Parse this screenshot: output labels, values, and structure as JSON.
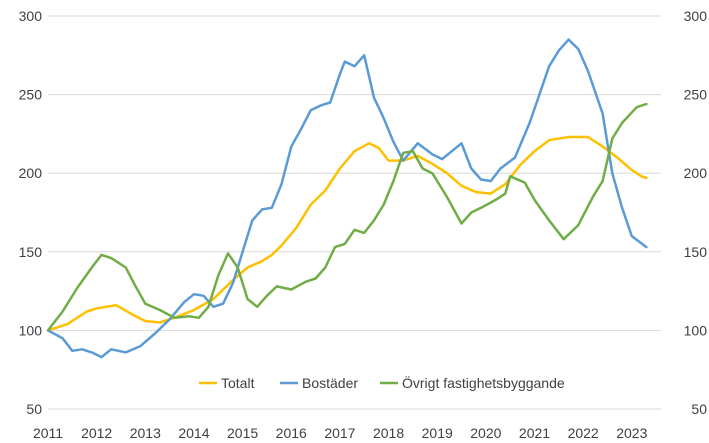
{
  "chart_data": {
    "type": "line",
    "title": "",
    "xlabel": "",
    "ylabel": "",
    "xlim": [
      2011.0,
      2023.6
    ],
    "ylim": [
      50,
      300
    ],
    "y_ticks": [
      50,
      100,
      150,
      200,
      250,
      300
    ],
    "y_ticks_right": [
      50,
      100,
      150,
      200,
      250,
      300
    ],
    "x_ticks": [
      2011,
      2012,
      2013,
      2014,
      2015,
      2016,
      2017,
      2018,
      2019,
      2020,
      2021,
      2022,
      2023
    ],
    "grid": "horizontal",
    "legend_position": "bottom-inside",
    "series": [
      {
        "name": "Totalt",
        "color": "#FFC000",
        "points": [
          [
            2011.0,
            100
          ],
          [
            2011.4,
            104
          ],
          [
            2011.8,
            112
          ],
          [
            2012.0,
            114
          ],
          [
            2012.4,
            116
          ],
          [
            2012.8,
            109
          ],
          [
            2013.0,
            106
          ],
          [
            2013.3,
            105
          ],
          [
            2013.6,
            108
          ],
          [
            2014.0,
            113
          ],
          [
            2014.4,
            120
          ],
          [
            2014.8,
            132
          ],
          [
            2015.1,
            140
          ],
          [
            2015.4,
            144
          ],
          [
            2015.6,
            148
          ],
          [
            2015.8,
            154
          ],
          [
            2016.1,
            165
          ],
          [
            2016.4,
            180
          ],
          [
            2016.7,
            189
          ],
          [
            2017.0,
            203
          ],
          [
            2017.3,
            214
          ],
          [
            2017.6,
            219
          ],
          [
            2017.8,
            216
          ],
          [
            2018.0,
            208
          ],
          [
            2018.3,
            208
          ],
          [
            2018.6,
            211
          ],
          [
            2018.9,
            206
          ],
          [
            2019.2,
            200
          ],
          [
            2019.5,
            192
          ],
          [
            2019.8,
            188
          ],
          [
            2020.1,
            187
          ],
          [
            2020.4,
            193
          ],
          [
            2020.7,
            205
          ],
          [
            2021.0,
            214
          ],
          [
            2021.3,
            221
          ],
          [
            2021.7,
            223
          ],
          [
            2022.1,
            223
          ],
          [
            2022.4,
            217
          ],
          [
            2022.7,
            210
          ],
          [
            2023.0,
            202
          ],
          [
            2023.2,
            198
          ],
          [
            2023.3,
            197
          ]
        ]
      },
      {
        "name": "Bostäder",
        "color": "#5B9BD5",
        "points": [
          [
            2011.0,
            100
          ],
          [
            2011.3,
            95
          ],
          [
            2011.5,
            87
          ],
          [
            2011.7,
            88
          ],
          [
            2011.9,
            86
          ],
          [
            2012.1,
            83
          ],
          [
            2012.3,
            88
          ],
          [
            2012.6,
            86
          ],
          [
            2012.9,
            90
          ],
          [
            2013.2,
            98
          ],
          [
            2013.5,
            107
          ],
          [
            2013.8,
            118
          ],
          [
            2014.0,
            123
          ],
          [
            2014.2,
            122
          ],
          [
            2014.4,
            115
          ],
          [
            2014.6,
            117
          ],
          [
            2014.8,
            130
          ],
          [
            2015.0,
            150
          ],
          [
            2015.2,
            170
          ],
          [
            2015.4,
            177
          ],
          [
            2015.6,
            178
          ],
          [
            2015.8,
            193
          ],
          [
            2016.0,
            217
          ],
          [
            2016.2,
            228
          ],
          [
            2016.4,
            240
          ],
          [
            2016.6,
            243
          ],
          [
            2016.8,
            245
          ],
          [
            2017.0,
            263
          ],
          [
            2017.1,
            271
          ],
          [
            2017.3,
            268
          ],
          [
            2017.5,
            275
          ],
          [
            2017.7,
            248
          ],
          [
            2017.9,
            235
          ],
          [
            2018.1,
            220
          ],
          [
            2018.3,
            208
          ],
          [
            2018.6,
            219
          ],
          [
            2018.9,
            212
          ],
          [
            2019.1,
            209
          ],
          [
            2019.3,
            214
          ],
          [
            2019.5,
            219
          ],
          [
            2019.7,
            203
          ],
          [
            2019.9,
            196
          ],
          [
            2020.1,
            195
          ],
          [
            2020.3,
            203
          ],
          [
            2020.6,
            210
          ],
          [
            2020.9,
            232
          ],
          [
            2021.1,
            250
          ],
          [
            2021.3,
            268
          ],
          [
            2021.5,
            278
          ],
          [
            2021.7,
            285
          ],
          [
            2021.9,
            279
          ],
          [
            2022.1,
            265
          ],
          [
            2022.4,
            238
          ],
          [
            2022.6,
            200
          ],
          [
            2022.8,
            178
          ],
          [
            2023.0,
            160
          ],
          [
            2023.3,
            153
          ]
        ]
      },
      {
        "name": "Övrigt fastighetsbyggande",
        "color": "#70AD47",
        "points": [
          [
            2011.0,
            100
          ],
          [
            2011.3,
            112
          ],
          [
            2011.6,
            127
          ],
          [
            2011.9,
            140
          ],
          [
            2012.1,
            148
          ],
          [
            2012.3,
            146
          ],
          [
            2012.6,
            140
          ],
          [
            2012.8,
            128
          ],
          [
            2013.0,
            117
          ],
          [
            2013.3,
            113
          ],
          [
            2013.6,
            108
          ],
          [
            2013.9,
            109
          ],
          [
            2014.1,
            108
          ],
          [
            2014.3,
            115
          ],
          [
            2014.5,
            135
          ],
          [
            2014.7,
            149
          ],
          [
            2014.9,
            140
          ],
          [
            2015.1,
            120
          ],
          [
            2015.3,
            115
          ],
          [
            2015.5,
            122
          ],
          [
            2015.7,
            128
          ],
          [
            2016.0,
            126
          ],
          [
            2016.3,
            131
          ],
          [
            2016.5,
            133
          ],
          [
            2016.7,
            140
          ],
          [
            2016.9,
            153
          ],
          [
            2017.1,
            155
          ],
          [
            2017.3,
            164
          ],
          [
            2017.5,
            162
          ],
          [
            2017.7,
            170
          ],
          [
            2017.9,
            180
          ],
          [
            2018.1,
            195
          ],
          [
            2018.3,
            213
          ],
          [
            2018.5,
            214
          ],
          [
            2018.7,
            203
          ],
          [
            2018.9,
            200
          ],
          [
            2019.2,
            185
          ],
          [
            2019.5,
            168
          ],
          [
            2019.7,
            175
          ],
          [
            2019.9,
            178
          ],
          [
            2020.2,
            183
          ],
          [
            2020.4,
            187
          ],
          [
            2020.5,
            198
          ],
          [
            2020.8,
            194
          ],
          [
            2021.0,
            183
          ],
          [
            2021.3,
            170
          ],
          [
            2021.6,
            158
          ],
          [
            2021.9,
            167
          ],
          [
            2022.2,
            185
          ],
          [
            2022.4,
            195
          ],
          [
            2022.6,
            222
          ],
          [
            2022.8,
            232
          ],
          [
            2023.1,
            242
          ],
          [
            2023.3,
            244
          ]
        ]
      }
    ]
  }
}
